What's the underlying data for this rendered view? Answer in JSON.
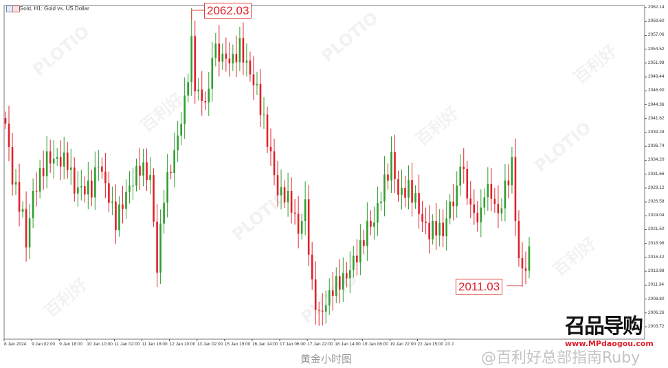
{
  "window": {
    "title": "Gold, H1:  Gold vs. US Dollar"
  },
  "chart_data": {
    "type": "candlestick",
    "title": "Gold, H1:  Gold vs. US Dollar",
    "yticks": [
      "2062.14",
      "2059.60",
      "2057.06",
      "2054.52",
      "2051.98",
      "2049.44",
      "2046.90",
      "2044.36",
      "2041.82",
      "2039.28",
      "2036.74",
      "2034.20",
      "2031.66",
      "2029.12",
      "2026.58",
      "2024.04",
      "2021.50",
      "2018.96",
      "2016.42",
      "2013.88",
      "2011.34",
      "2008.80",
      "2006.26",
      "2003.72"
    ],
    "ylim": [
      2003.72,
      2062.14
    ],
    "xticks": [
      "8 Jan 2024",
      "9 Jan 02:00",
      "9 Jan 18:00",
      "10 Jan 10:00",
      "11 Jan 02:00",
      "11 Jan 18:00",
      "12 Jan 10:00",
      "13 Jan 02:00",
      "15 Jan 19:00",
      "16 Jan 14:00",
      "17 Jan 06:00",
      "17 Jan 22:00",
      "18 Jan 14:00",
      "19 Jan 06:00",
      "19 Jan 22:00",
      "22 Jan 15:00",
      "23 J"
    ],
    "approx_close_path": [
      [
        0,
        2040.9
      ],
      [
        2,
        2031
      ],
      [
        5,
        2024
      ],
      [
        6,
        2019
      ],
      [
        8,
        2028
      ],
      [
        12,
        2034.5
      ],
      [
        18,
        2034
      ],
      [
        20,
        2029
      ],
      [
        25,
        2029
      ],
      [
        27,
        2034
      ],
      [
        32,
        2023
      ],
      [
        35,
        2028
      ],
      [
        39,
        2033
      ],
      [
        42,
        2031
      ],
      [
        44,
        2014.5
      ],
      [
        46,
        2028
      ],
      [
        49,
        2035.5
      ],
      [
        52,
        2044.7
      ],
      [
        54,
        2055.4
      ],
      [
        55,
        2048
      ],
      [
        57,
        2045
      ],
      [
        59,
        2046
      ],
      [
        60,
        2054.5
      ],
      [
        63,
        2053
      ],
      [
        66,
        2052.4
      ],
      [
        68,
        2055
      ],
      [
        71,
        2050
      ],
      [
        73,
        2047
      ],
      [
        75,
        2041
      ],
      [
        77,
        2035
      ],
      [
        79,
        2028.3
      ],
      [
        81,
        2028
      ],
      [
        83,
        2026
      ],
      [
        85,
        2021
      ],
      [
        87,
        2026
      ],
      [
        89,
        2010.8
      ],
      [
        91,
        2005.7
      ],
      [
        93,
        2008
      ],
      [
        95,
        2010.8
      ],
      [
        97,
        2012
      ],
      [
        99,
        2013
      ],
      [
        101,
        2015.8
      ],
      [
        103,
        2018
      ],
      [
        105,
        2022
      ],
      [
        107,
        2023
      ],
      [
        109,
        2028
      ],
      [
        111,
        2032
      ],
      [
        112,
        2034.6
      ],
      [
        114,
        2028
      ],
      [
        117,
        2029
      ],
      [
        119,
        2027
      ],
      [
        121,
        2023
      ],
      [
        123,
        2021
      ],
      [
        125,
        2022
      ],
      [
        127,
        2021
      ],
      [
        129,
        2026
      ],
      [
        131,
        2028
      ],
      [
        132,
        2034.6
      ],
      [
        134,
        2028
      ],
      [
        136,
        2024
      ],
      [
        138,
        2024
      ],
      [
        139,
        2029
      ],
      [
        141,
        2028
      ],
      [
        143,
        2024
      ],
      [
        145,
        2029
      ],
      [
        147,
        2033.4
      ],
      [
        148,
        2024
      ],
      [
        149,
        2016
      ],
      [
        150,
        2014
      ],
      [
        151,
        2015
      ],
      [
        152,
        2017
      ]
    ],
    "annotations": [
      {
        "label": "2062.03",
        "value": 2062.03
      },
      {
        "label": "2011.03",
        "value": 2011.03
      }
    ],
    "colors": {
      "up": "#2e9e2e",
      "down": "#e0202a"
    },
    "grid": false
  },
  "overlay": {
    "caption": "黄金小时图",
    "weibo": "@百利好总部指南Ruby",
    "logo": "召品导购",
    "logo_url": "www.MPdaogou.com",
    "watermark_a": "PLOTIO",
    "watermark_b": "百利好"
  }
}
